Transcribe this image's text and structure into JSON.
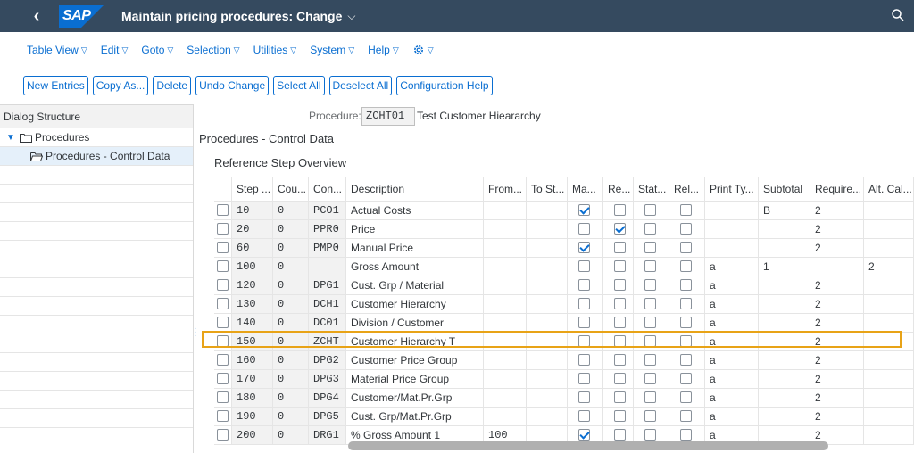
{
  "shell": {
    "back_glyph": "‹",
    "logo": "SAP",
    "title": "Maintain pricing procedures: Change"
  },
  "menu": [
    {
      "label": "Table View"
    },
    {
      "label": "Edit"
    },
    {
      "label": "Goto"
    },
    {
      "label": "Selection"
    },
    {
      "label": "Utilities"
    },
    {
      "label": "System"
    },
    {
      "label": "Help"
    }
  ],
  "toolbar": [
    {
      "label": "New Entries"
    },
    {
      "label": "Copy As..."
    },
    {
      "label": "Delete"
    },
    {
      "label": "Undo Change"
    },
    {
      "label": "Select All"
    },
    {
      "label": "Deselect All"
    },
    {
      "label": "Configuration Help"
    }
  ],
  "left": {
    "header": "Dialog Structure",
    "items": [
      {
        "label": "Procedures"
      },
      {
        "label": "Procedures - Control Data"
      }
    ]
  },
  "procedure": {
    "label": "Procedure:",
    "value": "ZCHT01",
    "description": "Test Customer Hieararchy"
  },
  "section_title": "Procedures - Control Data",
  "sub_title": "Reference Step Overview",
  "table": {
    "columns": [
      "Step ...",
      "Cou...",
      "Con...",
      "Description",
      "From...",
      "To St...",
      "Ma...",
      "Re...",
      "Stat...",
      "Rel...",
      "Print Ty...",
      "Subtotal",
      "Require...",
      "Alt. Cal..."
    ],
    "rows": [
      {
        "step": "10",
        "cou": "0",
        "con": "PCO1",
        "desc": "Actual Costs",
        "from": "",
        "to": "",
        "ma": true,
        "re": false,
        "stat": false,
        "rel": false,
        "print": "",
        "subtotal": "B",
        "req": "2",
        "alt": ""
      },
      {
        "step": "20",
        "cou": "0",
        "con": "PPR0",
        "desc": "Price",
        "from": "",
        "to": "",
        "ma": false,
        "re": true,
        "stat": false,
        "rel": false,
        "print": "",
        "subtotal": "",
        "req": "2",
        "alt": ""
      },
      {
        "step": "60",
        "cou": "0",
        "con": "PMP0",
        "desc": "Manual Price",
        "from": "",
        "to": "",
        "ma": true,
        "re": false,
        "stat": false,
        "rel": false,
        "print": "",
        "subtotal": "",
        "req": "2",
        "alt": ""
      },
      {
        "step": "100",
        "cou": "0",
        "con": "",
        "desc": "Gross Amount",
        "from": "",
        "to": "",
        "ma": false,
        "re": false,
        "stat": false,
        "rel": false,
        "print": "a",
        "subtotal": "1",
        "req": "",
        "alt": "2"
      },
      {
        "step": "120",
        "cou": "0",
        "con": "DPG1",
        "desc": "Cust. Grp / Material",
        "from": "",
        "to": "",
        "ma": false,
        "re": false,
        "stat": false,
        "rel": false,
        "print": "a",
        "subtotal": "",
        "req": "2",
        "alt": ""
      },
      {
        "step": "130",
        "cou": "0",
        "con": "DCH1",
        "desc": "Customer Hierarchy",
        "from": "",
        "to": "",
        "ma": false,
        "re": false,
        "stat": false,
        "rel": false,
        "print": "a",
        "subtotal": "",
        "req": "2",
        "alt": ""
      },
      {
        "step": "140",
        "cou": "0",
        "con": "DC01",
        "desc": "Division / Customer",
        "from": "",
        "to": "",
        "ma": false,
        "re": false,
        "stat": false,
        "rel": false,
        "print": "a",
        "subtotal": "",
        "req": "2",
        "alt": ""
      },
      {
        "step": "150",
        "cou": "0",
        "con": "ZCHT",
        "desc": "Customer Hierarchy T",
        "from": "",
        "to": "",
        "ma": false,
        "re": false,
        "stat": false,
        "rel": false,
        "print": "a",
        "subtotal": "",
        "req": "2",
        "alt": ""
      },
      {
        "step": "160",
        "cou": "0",
        "con": "DPG2",
        "desc": "Customer Price Group",
        "from": "",
        "to": "",
        "ma": false,
        "re": false,
        "stat": false,
        "rel": false,
        "print": "a",
        "subtotal": "",
        "req": "2",
        "alt": ""
      },
      {
        "step": "170",
        "cou": "0",
        "con": "DPG3",
        "desc": "Material Price Group",
        "from": "",
        "to": "",
        "ma": false,
        "re": false,
        "stat": false,
        "rel": false,
        "print": "a",
        "subtotal": "",
        "req": "2",
        "alt": ""
      },
      {
        "step": "180",
        "cou": "0",
        "con": "DPG4",
        "desc": "Customer/Mat.Pr.Grp",
        "from": "",
        "to": "",
        "ma": false,
        "re": false,
        "stat": false,
        "rel": false,
        "print": "a",
        "subtotal": "",
        "req": "2",
        "alt": ""
      },
      {
        "step": "190",
        "cou": "0",
        "con": "DPG5",
        "desc": "Cust. Grp/Mat.Pr.Grp",
        "from": "",
        "to": "",
        "ma": false,
        "re": false,
        "stat": false,
        "rel": false,
        "print": "a",
        "subtotal": "",
        "req": "2",
        "alt": ""
      },
      {
        "step": "200",
        "cou": "0",
        "con": "DRG1",
        "desc": "% Gross Amount 1",
        "from": "100",
        "to": "",
        "ma": true,
        "re": false,
        "stat": false,
        "rel": false,
        "print": "a",
        "subtotal": "",
        "req": "2",
        "alt": ""
      }
    ]
  },
  "colors": {
    "shell": "#354a5f",
    "accent": "#0a6ed1",
    "highlight": "#e8a317"
  }
}
